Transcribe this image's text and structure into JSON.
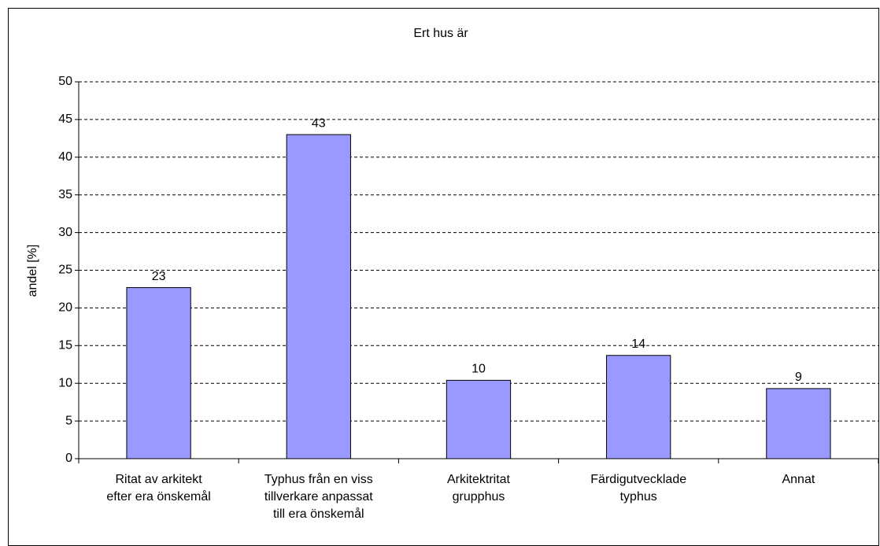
{
  "chart_data": {
    "type": "bar",
    "title": "Ert hus är",
    "y_label": "andel [%]",
    "categories": [
      "Ritat av arkitekt\nefter era önskemål",
      "Typhus från en viss\ntillverkare anpassat\ntill era önskemål",
      "Arkitektritat\ngrupphus",
      "Färdigutvecklade\ntyphus",
      "Annat"
    ],
    "values": [
      22.7,
      43,
      10.4,
      13.7,
      9.3
    ],
    "value_labels": [
      "23",
      "43",
      "10",
      "14",
      "9"
    ],
    "color": "#9999ff",
    "ylim": [
      0,
      50
    ],
    "yticks": [
      0,
      5,
      10,
      15,
      20,
      25,
      30,
      35,
      40,
      45,
      50
    ],
    "grid": true
  }
}
